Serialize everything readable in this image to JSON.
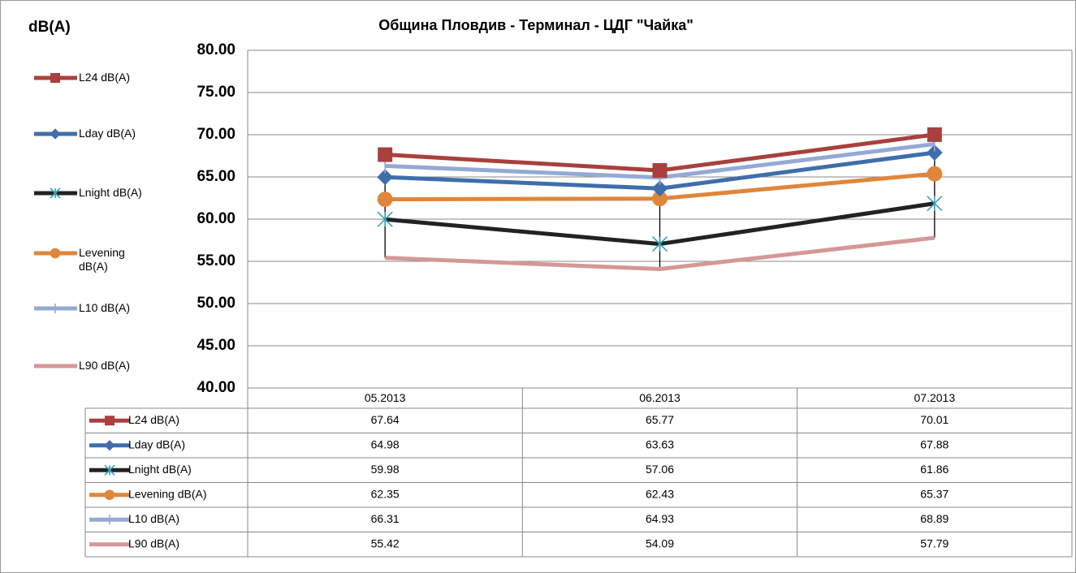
{
  "chart_data": {
    "type": "line",
    "title": "Община Пловдив  - Терминал - ЦДГ \"Чайка\"",
    "y_label": "dB(A)",
    "categories": [
      "05.2013",
      "06.2013",
      "07.2013"
    ],
    "series": [
      {
        "name": "L24 dB(A)",
        "color": "#a9403d",
        "marker": "square",
        "values": [
          67.64,
          65.77,
          70.01
        ]
      },
      {
        "name": "Lday dB(A)",
        "color": "#3e6eab",
        "marker": "diamond",
        "values": [
          64.98,
          63.63,
          67.88
        ]
      },
      {
        "name": "Lnight dB(A)",
        "color": "#222222",
        "marker": "x",
        "marker_color": "#3aa3b8",
        "values": [
          59.98,
          57.06,
          61.86
        ]
      },
      {
        "name": "Levening dB(A)",
        "color": "#e0863a",
        "marker": "circle",
        "values": [
          62.35,
          62.43,
          65.37
        ]
      },
      {
        "name": "L10 dB(A)",
        "color": "#94aad5",
        "marker": "plus",
        "values": [
          66.31,
          64.93,
          68.89
        ]
      },
      {
        "name": "L90 dB(A)",
        "color": "#d59797",
        "marker": "none",
        "values": [
          55.42,
          54.09,
          57.79
        ]
      }
    ],
    "ylim": [
      40,
      80
    ],
    "yticks": [
      {
        "value": 40,
        "label": "40.00"
      },
      {
        "value": 45,
        "label": "45.00"
      },
      {
        "value": 50,
        "label": "50.00"
      },
      {
        "value": 55,
        "label": "55.00"
      },
      {
        "value": 60,
        "label": "60.00"
      },
      {
        "value": 65,
        "label": "65.00"
      },
      {
        "value": 70,
        "label": "70.00"
      },
      {
        "value": 75,
        "label": "75.00"
      },
      {
        "value": 80,
        "label": "80.00"
      }
    ],
    "grid": true,
    "high_low_lines": true,
    "legend": "left",
    "data_table": true
  }
}
